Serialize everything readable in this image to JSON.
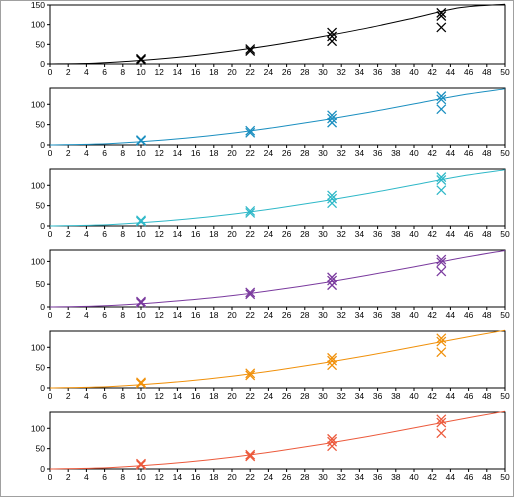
{
  "chart_data": [
    {
      "type": "scatter",
      "title": "",
      "xlabel": "",
      "ylabel": "",
      "xlim": [
        0,
        50
      ],
      "ylim": [
        0,
        150
      ],
      "xticks": [
        0,
        2,
        4,
        6,
        8,
        10,
        12,
        14,
        16,
        18,
        20,
        22,
        24,
        26,
        28,
        30,
        32,
        34,
        36,
        38,
        40,
        42,
        44,
        46,
        48,
        50
      ],
      "yticks": [
        0,
        50,
        100,
        150
      ],
      "color": "#000000",
      "grid": false,
      "points": [
        {
          "x": 10,
          "y": 10
        },
        {
          "x": 10,
          "y": 13
        },
        {
          "x": 22,
          "y": 33
        },
        {
          "x": 22,
          "y": 38
        },
        {
          "x": 31,
          "y": 58
        },
        {
          "x": 31,
          "y": 70
        },
        {
          "x": 31,
          "y": 80
        },
        {
          "x": 43,
          "y": 93
        },
        {
          "x": 43,
          "y": 122
        },
        {
          "x": 43,
          "y": 130
        }
      ],
      "fit_curve": {
        "x": [
          0,
          5,
          10,
          15,
          20,
          25,
          30,
          35,
          40,
          45,
          50
        ],
        "y": [
          0,
          2,
          9,
          19,
          33,
          50,
          70,
          92,
          117,
          143,
          152
        ]
      }
    },
    {
      "type": "scatter",
      "title": "",
      "xlabel": "",
      "ylabel": "",
      "xlim": [
        0,
        50
      ],
      "ylim": [
        0,
        140
      ],
      "xticks": [
        0,
        2,
        4,
        6,
        8,
        10,
        12,
        14,
        16,
        18,
        20,
        22,
        24,
        26,
        28,
        30,
        32,
        34,
        36,
        38,
        40,
        42,
        44,
        46,
        48,
        50
      ],
      "yticks": [
        0,
        50,
        100
      ],
      "color": "#1b8fc0",
      "grid": false,
      "points": [
        {
          "x": 10,
          "y": 10
        },
        {
          "x": 10,
          "y": 12
        },
        {
          "x": 22,
          "y": 30
        },
        {
          "x": 22,
          "y": 35
        },
        {
          "x": 31,
          "y": 55
        },
        {
          "x": 31,
          "y": 65
        },
        {
          "x": 31,
          "y": 73
        },
        {
          "x": 43,
          "y": 88
        },
        {
          "x": 43,
          "y": 112
        },
        {
          "x": 43,
          "y": 120
        }
      ],
      "fit_curve": {
        "x": [
          0,
          5,
          10,
          15,
          20,
          25,
          30,
          35,
          40,
          45,
          50
        ],
        "y": [
          0,
          2,
          8,
          17,
          29,
          44,
          61,
          80,
          101,
          122,
          138
        ]
      }
    },
    {
      "type": "scatter",
      "title": "",
      "xlabel": "",
      "ylabel": "",
      "xlim": [
        0,
        50
      ],
      "ylim": [
        0,
        140
      ],
      "xticks": [
        0,
        2,
        4,
        6,
        8,
        10,
        12,
        14,
        16,
        18,
        20,
        22,
        24,
        26,
        28,
        30,
        32,
        34,
        36,
        38,
        40,
        42,
        44,
        46,
        48,
        50
      ],
      "yticks": [
        0,
        50,
        100
      ],
      "color": "#2fb8c8",
      "grid": false,
      "points": [
        {
          "x": 10,
          "y": 11
        },
        {
          "x": 10,
          "y": 14
        },
        {
          "x": 22,
          "y": 32
        },
        {
          "x": 22,
          "y": 37
        },
        {
          "x": 31,
          "y": 56
        },
        {
          "x": 31,
          "y": 67
        },
        {
          "x": 31,
          "y": 75
        },
        {
          "x": 43,
          "y": 88
        },
        {
          "x": 43,
          "y": 113
        },
        {
          "x": 43,
          "y": 120
        }
      ],
      "fit_curve": {
        "x": [
          0,
          5,
          10,
          15,
          20,
          25,
          30,
          35,
          40,
          45,
          50
        ],
        "y": [
          0,
          2,
          8,
          17,
          29,
          44,
          61,
          80,
          101,
          122,
          138
        ]
      }
    },
    {
      "type": "scatter",
      "title": "",
      "xlabel": "",
      "ylabel": "",
      "xlim": [
        0,
        50
      ],
      "ylim": [
        0,
        125
      ],
      "xticks": [
        0,
        2,
        4,
        6,
        8,
        10,
        12,
        14,
        16,
        18,
        20,
        22,
        24,
        26,
        28,
        30,
        32,
        34,
        36,
        38,
        40,
        42,
        44,
        46,
        48,
        50
      ],
      "yticks": [
        0,
        50,
        100
      ],
      "color": "#7a3a9e",
      "grid": false,
      "points": [
        {
          "x": 10,
          "y": 9
        },
        {
          "x": 10,
          "y": 12
        },
        {
          "x": 22,
          "y": 28
        },
        {
          "x": 22,
          "y": 32
        },
        {
          "x": 31,
          "y": 48
        },
        {
          "x": 31,
          "y": 58
        },
        {
          "x": 31,
          "y": 65
        },
        {
          "x": 43,
          "y": 78
        },
        {
          "x": 43,
          "y": 98
        },
        {
          "x": 43,
          "y": 104
        }
      ],
      "fit_curve": {
        "x": [
          0,
          5,
          10,
          15,
          20,
          25,
          30,
          35,
          40,
          45,
          50
        ],
        "y": [
          0,
          2,
          7,
          15,
          25,
          38,
          53,
          70,
          88,
          107,
          124
        ]
      }
    },
    {
      "type": "scatter",
      "title": "",
      "xlabel": "",
      "ylabel": "",
      "xlim": [
        0,
        50
      ],
      "ylim": [
        0,
        140
      ],
      "xticks": [
        0,
        2,
        4,
        6,
        8,
        10,
        12,
        14,
        16,
        18,
        20,
        22,
        24,
        26,
        28,
        30,
        32,
        34,
        36,
        38,
        40,
        42,
        44,
        46,
        48,
        50
      ],
      "yticks": [
        0,
        50,
        100
      ],
      "color": "#f0900a",
      "grid": false,
      "points": [
        {
          "x": 10,
          "y": 11
        },
        {
          "x": 10,
          "y": 14
        },
        {
          "x": 22,
          "y": 31
        },
        {
          "x": 22,
          "y": 36
        },
        {
          "x": 31,
          "y": 56
        },
        {
          "x": 31,
          "y": 67
        },
        {
          "x": 31,
          "y": 74
        },
        {
          "x": 43,
          "y": 88
        },
        {
          "x": 43,
          "y": 114
        },
        {
          "x": 43,
          "y": 122
        }
      ],
      "fit_curve": {
        "x": [
          0,
          5,
          10,
          15,
          20,
          25,
          30,
          35,
          40,
          45,
          50
        ],
        "y": [
          0,
          2,
          8,
          17,
          29,
          44,
          61,
          80,
          101,
          122,
          142
        ]
      }
    },
    {
      "type": "scatter",
      "title": "",
      "xlabel": "",
      "ylabel": "",
      "xlim": [
        0,
        50
      ],
      "ylim": [
        0,
        140
      ],
      "xticks": [
        0,
        2,
        4,
        6,
        8,
        10,
        12,
        14,
        16,
        18,
        20,
        22,
        24,
        26,
        28,
        30,
        32,
        34,
        36,
        38,
        40,
        42,
        44,
        46,
        48,
        50
      ],
      "yticks": [
        0,
        50,
        100
      ],
      "color": "#ec5a3c",
      "grid": false,
      "points": [
        {
          "x": 10,
          "y": 10
        },
        {
          "x": 10,
          "y": 13
        },
        {
          "x": 22,
          "y": 31
        },
        {
          "x": 22,
          "y": 35
        },
        {
          "x": 31,
          "y": 56
        },
        {
          "x": 31,
          "y": 67
        },
        {
          "x": 31,
          "y": 74
        },
        {
          "x": 43,
          "y": 88
        },
        {
          "x": 43,
          "y": 114
        },
        {
          "x": 43,
          "y": 122
        }
      ],
      "fit_curve": {
        "x": [
          0,
          5,
          10,
          15,
          20,
          25,
          30,
          35,
          40,
          45,
          50
        ],
        "y": [
          0,
          2,
          8,
          17,
          29,
          44,
          61,
          80,
          101,
          122,
          142
        ]
      }
    }
  ]
}
